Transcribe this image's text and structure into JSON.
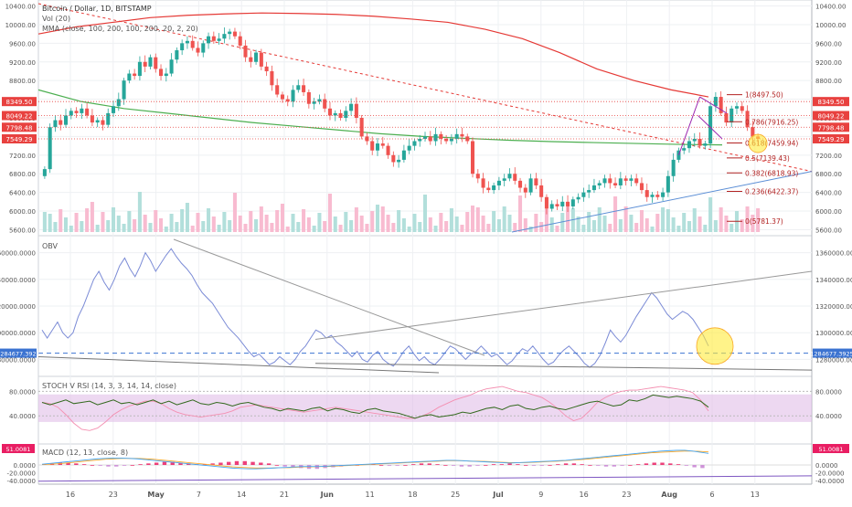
{
  "header": {
    "title_line": "Bitcoin / Dollar, 1D, BITSTAMP",
    "vol_line": "Vol (20)",
    "mma_line": "MMA (close, 100, 200, 100, 200, 20, 2, 20)"
  },
  "chart_data": [
    {
      "type": "candlestick",
      "title": "Bitcoin / Dollar, 1D, BITSTAMP",
      "x_ticks": [
        "16",
        "23",
        "May",
        "7",
        "14",
        "21",
        "Jun",
        "11",
        "18",
        "25",
        "Jul",
        "9",
        "16",
        "23",
        "Aug",
        "6",
        "13"
      ],
      "y_ticks": [
        "10400.00",
        "10000.00",
        "9600.00",
        "9200.00",
        "8800.00",
        "8400.00",
        "8000.00",
        "7600.00",
        "7200.00",
        "6800.00",
        "6400.00",
        "6000.00",
        "5600.00"
      ],
      "ylim": [
        5550,
        10450
      ],
      "price_labels": [
        {
          "text": "8349.50",
          "value": 8349.5,
          "color": "#e8413f"
        },
        {
          "text": "8049.22",
          "value": 8049.22,
          "color": "#e8413f"
        },
        {
          "text": "7798.48",
          "value": 7798.48,
          "color": "#e8413f"
        },
        {
          "text": "7549.29",
          "value": 7549.29,
          "color": "#e8413f"
        }
      ],
      "fib_levels": [
        {
          "label": "1(8497.50)",
          "value": 8497.5
        },
        {
          "label": "0.786(7916.25)",
          "value": 7916.25
        },
        {
          "label": "0.618(7459.94)",
          "value": 7459.94
        },
        {
          "label": "0.5(7139.43)",
          "value": 7139.43
        },
        {
          "label": "0.382(6818.93)",
          "value": 6818.93
        },
        {
          "label": "0.236(6422.37)",
          "value": 6422.37
        },
        {
          "label": "0(5781.37)",
          "value": 5781.37
        }
      ],
      "close_series": [
        6900,
        7800,
        7950,
        7850,
        8050,
        8150,
        8100,
        8200,
        8050,
        7900,
        7950,
        7850,
        8100,
        8250,
        8400,
        8800,
        8950,
        8900,
        9200,
        9100,
        9300,
        9050,
        8900,
        8950,
        9250,
        9450,
        9600,
        9650,
        9500,
        9400,
        9600,
        9750,
        9650,
        9700,
        9800,
        9850,
        9750,
        9550,
        9300,
        9200,
        9400,
        9100,
        9000,
        8700,
        8500,
        8400,
        8350,
        8600,
        8700,
        8550,
        8300,
        8350,
        8400,
        8200,
        8050,
        8100,
        8000,
        8150,
        8300,
        8000,
        7600,
        7500,
        7300,
        7450,
        7400,
        7200,
        7050,
        7100,
        7300,
        7400,
        7500,
        7550,
        7600,
        7500,
        7650,
        7550,
        7500,
        7550,
        7650,
        7600,
        7500,
        6800,
        6700,
        6500,
        6450,
        6550,
        6650,
        6700,
        6800,
        6650,
        6500,
        6400,
        6700,
        6550,
        6300,
        6050,
        6150,
        6100,
        6200,
        6100,
        6250,
        6300,
        6400,
        6450,
        6550,
        6600,
        6700,
        6600,
        6550,
        6700,
        6650,
        6700,
        6600,
        6450,
        6300,
        6350,
        6300,
        6400,
        6750,
        7100,
        7300,
        7350,
        7500,
        7550,
        7400,
        7450,
        8250,
        8450,
        8100,
        7900,
        8200,
        8250,
        8150,
        7800,
        7600,
        7550
      ],
      "ma_green": [
        8600,
        8350,
        8200,
        8100,
        8000,
        7900,
        7820,
        7740,
        7660,
        7600,
        7560,
        7520,
        7490,
        7470,
        7450,
        7430,
        7420
      ],
      "ma_red": [
        9800,
        9950,
        10050,
        10150,
        10200,
        10230,
        10250,
        10240,
        10220,
        10180,
        10120,
        10050,
        9900,
        9700,
        9400,
        9050,
        8800,
        8600,
        8450
      ]
    },
    {
      "type": "line",
      "title": "OBV",
      "y_ticks": [
        "1360000.0000",
        "1340000.0000",
        "1320000.0000",
        "1300000.0000",
        "1280000.0000"
      ],
      "ylim": [
        1270000,
        1370000
      ],
      "current_label": "1284677.3925",
      "current_value": 1284677.3925,
      "values": [
        1302000,
        1296000,
        1302000,
        1308000,
        1300000,
        1296000,
        1300000,
        1312000,
        1320000,
        1330000,
        1340000,
        1346000,
        1338000,
        1332000,
        1340000,
        1350000,
        1356000,
        1348000,
        1342000,
        1350000,
        1360000,
        1354000,
        1346000,
        1352000,
        1358000,
        1363000,
        1357000,
        1352000,
        1348000,
        1343000,
        1336000,
        1330000,
        1326000,
        1322000,
        1316000,
        1310000,
        1304000,
        1300000,
        1296000,
        1291000,
        1286000,
        1282000,
        1284000,
        1280000,
        1276000,
        1278000,
        1282000,
        1279000,
        1276000,
        1280000,
        1286000,
        1290000,
        1296000,
        1302000,
        1300000,
        1296000,
        1298000,
        1293000,
        1290000,
        1286000,
        1282000,
        1286000,
        1280000,
        1278000,
        1283000,
        1286000,
        1280000,
        1277000,
        1275000,
        1280000,
        1286000,
        1290000,
        1284000,
        1279000,
        1282000,
        1278000,
        1276000,
        1280000,
        1285000,
        1290000,
        1288000,
        1284000,
        1280000,
        1284000,
        1286000,
        1290000,
        1286000,
        1282000,
        1284000,
        1280000,
        1276000,
        1279000,
        1284000,
        1288000,
        1286000,
        1290000,
        1285000,
        1280000,
        1276000,
        1278000,
        1283000,
        1287000,
        1290000,
        1286000,
        1282000,
        1277000,
        1274000,
        1277000,
        1283000,
        1292000,
        1302000,
        1297000,
        1293000,
        1298000,
        1305000,
        1312000,
        1318000,
        1324000,
        1330000,
        1326000,
        1320000,
        1314000,
        1310000,
        1313000,
        1316000,
        1314000,
        1310000,
        1304000,
        1298000,
        1290000
      ]
    },
    {
      "type": "line",
      "title": "STOCH V RSI (14, 3, 3, 14, 14, close)",
      "y_ticks": [
        "80.0000",
        "40.0000"
      ],
      "ylim": [
        0,
        100
      ],
      "band": [
        30,
        75
      ],
      "k_values": [
        62,
        58,
        62,
        66,
        60,
        62,
        64,
        58,
        62,
        66,
        60,
        62,
        58,
        62,
        66,
        60,
        64,
        58,
        62,
        66,
        60,
        58,
        62,
        60,
        56,
        60,
        62,
        58,
        54,
        52,
        48,
        52,
        50,
        48,
        52,
        54,
        48,
        52,
        50,
        46,
        44,
        50,
        52,
        48,
        46,
        44,
        40,
        36,
        40,
        42,
        38,
        40,
        42,
        46,
        44,
        48,
        52,
        54,
        50,
        56,
        58,
        52,
        50,
        54,
        56,
        52,
        50,
        54,
        58,
        62,
        64,
        60,
        56,
        58,
        66,
        64,
        68,
        74,
        72,
        70,
        72,
        70,
        68,
        64,
        54
      ],
      "d_values": [
        62,
        60,
        54,
        42,
        28,
        18,
        16,
        20,
        30,
        42,
        50,
        56,
        60,
        64,
        64,
        60,
        52,
        46,
        42,
        40,
        38,
        40,
        42,
        44,
        48,
        54,
        56,
        58,
        56,
        54,
        52,
        50,
        48,
        46,
        48,
        50,
        52,
        54,
        52,
        50,
        48,
        46,
        44,
        42,
        40,
        38,
        36,
        36,
        40,
        46,
        54,
        60,
        66,
        70,
        74,
        80,
        84,
        86,
        88,
        84,
        80,
        78,
        74,
        70,
        62,
        52,
        40,
        32,
        36,
        48,
        62,
        70,
        76,
        80,
        82,
        82,
        84,
        86,
        88,
        86,
        84,
        82,
        78,
        66,
        48
      ]
    },
    {
      "type": "bar",
      "title": "MACD (12, 13, close, 8)",
      "y_ticks": [
        "0.0000",
        "-20.0000",
        "-40.0000"
      ],
      "price_label": "51.0081",
      "histogram": [
        1,
        2,
        3,
        3,
        2,
        1,
        0,
        -1,
        -2,
        -2,
        -1,
        0,
        1,
        2,
        3,
        4,
        4,
        3,
        2,
        1,
        1,
        2,
        3,
        4,
        5,
        5,
        4,
        3,
        2,
        0,
        -2,
        -3,
        -4,
        -5,
        -5,
        -4,
        -3,
        -2,
        -1,
        0,
        1,
        1,
        0,
        -1,
        -1,
        0,
        1,
        2,
        2,
        1,
        0,
        -1,
        -2,
        -2,
        -1,
        0,
        1,
        1,
        2,
        1,
        0,
        -1,
        -1,
        0,
        1,
        2,
        2,
        1,
        0,
        -1,
        -2,
        -2,
        -1,
        0,
        1,
        2,
        3,
        3,
        2,
        1,
        -1,
        -3,
        -4
      ],
      "macd_line": [
        2,
        4,
        6,
        8,
        10,
        12,
        14,
        16,
        17,
        18,
        18,
        17,
        16,
        14,
        12,
        10,
        8,
        6,
        4,
        2,
        0,
        -2,
        -4,
        -6,
        -8,
        -9,
        -10,
        -10,
        -9,
        -8,
        -7,
        -6,
        -5,
        -4,
        -4,
        -4,
        -3,
        -2,
        -1,
        0,
        1,
        2,
        3,
        4,
        5,
        6,
        7,
        8,
        9,
        10,
        11,
        12,
        12,
        11,
        10,
        9,
        8,
        7,
        6,
        5,
        6,
        7,
        8,
        9,
        10,
        11,
        12,
        14,
        16,
        18,
        20,
        22,
        24,
        26,
        28,
        30,
        32,
        34,
        36,
        37,
        38,
        38,
        36,
        33,
        30
      ],
      "signal_line": [
        1,
        2,
        3,
        5,
        7,
        9,
        11,
        13,
        15,
        16,
        17,
        17,
        17,
        16,
        15,
        13,
        11,
        9,
        7,
        5,
        3,
        1,
        -1,
        -3,
        -5,
        -6,
        -7,
        -8,
        -8,
        -8,
        -7,
        -7,
        -6,
        -5,
        -5,
        -4,
        -4,
        -3,
        -2,
        -1,
        0,
        1,
        2,
        3,
        4,
        5,
        6,
        7,
        8,
        9,
        10,
        11,
        11,
        11,
        10,
        10,
        9,
        8,
        7,
        6,
        6,
        6,
        7,
        8,
        9,
        10,
        11,
        13,
        14,
        16,
        18,
        20,
        22,
        24,
        26,
        28,
        30,
        32,
        33,
        34,
        35,
        36,
        36,
        35,
        34
      ]
    }
  ],
  "colors": {
    "up": "#26a69a",
    "down": "#ef5350",
    "ma_green": "#4caf50",
    "ma_red": "#e53935",
    "fib_line": "#b22222",
    "obv_line": "#7b8bd6",
    "band": "#e1bee7",
    "highlight": "#ffeb3b"
  }
}
